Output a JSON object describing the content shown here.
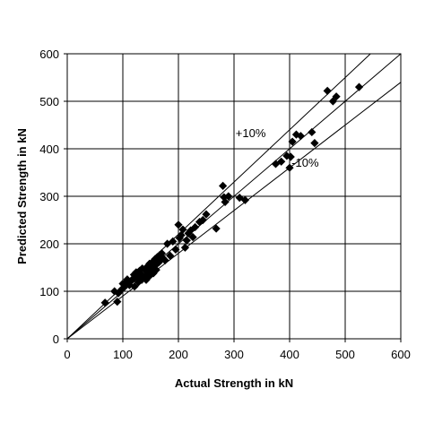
{
  "chart_data": {
    "type": "scatter",
    "xlabel": "Actual Strength in kN",
    "ylabel": "Predicted Strength in kN",
    "xlim": [
      0,
      600
    ],
    "ylim": [
      0,
      600
    ],
    "xticks": [
      "0",
      "100",
      "200",
      "300",
      "400",
      "500",
      "600"
    ],
    "yticks": [
      "0",
      "100",
      "200",
      "300",
      "400",
      "500",
      "600"
    ],
    "grid": true,
    "marker": "diamond",
    "marker_color": "#000000",
    "reference_lines": [
      {
        "label": "+10%",
        "slope": 1.1
      },
      {
        "label": "",
        "slope": 1.0
      },
      {
        "label": "-10%",
        "slope": 0.9
      }
    ],
    "annotations": [
      {
        "text": "+10%",
        "x": 330,
        "y": 425
      },
      {
        "text": "-10%",
        "x": 428,
        "y": 362
      }
    ],
    "points": [
      [
        68,
        76
      ],
      [
        85,
        100
      ],
      [
        90,
        78
      ],
      [
        92,
        96
      ],
      [
        98,
        104
      ],
      [
        100,
        116
      ],
      [
        102,
        108
      ],
      [
        106,
        120
      ],
      [
        108,
        125
      ],
      [
        110,
        118
      ],
      [
        112,
        113
      ],
      [
        115,
        122
      ],
      [
        118,
        126
      ],
      [
        120,
        135
      ],
      [
        121,
        110
      ],
      [
        124,
        140
      ],
      [
        126,
        129
      ],
      [
        128,
        119
      ],
      [
        130,
        143
      ],
      [
        132,
        137
      ],
      [
        134,
        124
      ],
      [
        135,
        148
      ],
      [
        138,
        130
      ],
      [
        140,
        145
      ],
      [
        142,
        124
      ],
      [
        144,
        152
      ],
      [
        145,
        136
      ],
      [
        147,
        131
      ],
      [
        148,
        158
      ],
      [
        150,
        146
      ],
      [
        152,
        140
      ],
      [
        154,
        162
      ],
      [
        155,
        138
      ],
      [
        157,
        153
      ],
      [
        158,
        168
      ],
      [
        160,
        145
      ],
      [
        162,
        172
      ],
      [
        164,
        160
      ],
      [
        166,
        176
      ],
      [
        168,
        165
      ],
      [
        170,
        180
      ],
      [
        172,
        170
      ],
      [
        176,
        165
      ],
      [
        180,
        200
      ],
      [
        185,
        175
      ],
      [
        190,
        205
      ],
      [
        195,
        188
      ],
      [
        200,
        240
      ],
      [
        202,
        212
      ],
      [
        205,
        218
      ],
      [
        208,
        230
      ],
      [
        212,
        192
      ],
      [
        215,
        207
      ],
      [
        218,
        222
      ],
      [
        222,
        228
      ],
      [
        226,
        214
      ],
      [
        230,
        235
      ],
      [
        238,
        246
      ],
      [
        244,
        250
      ],
      [
        250,
        262
      ],
      [
        268,
        232
      ],
      [
        280,
        322
      ],
      [
        282,
        298
      ],
      [
        284,
        288
      ],
      [
        290,
        300
      ],
      [
        310,
        297
      ],
      [
        320,
        292
      ],
      [
        375,
        368
      ],
      [
        385,
        373
      ],
      [
        395,
        385
      ],
      [
        400,
        360
      ],
      [
        402,
        383
      ],
      [
        405,
        415
      ],
      [
        412,
        430
      ],
      [
        420,
        427
      ],
      [
        440,
        435
      ],
      [
        445,
        412
      ],
      [
        468,
        522
      ],
      [
        478,
        500
      ],
      [
        484,
        510
      ],
      [
        525,
        530
      ]
    ]
  }
}
